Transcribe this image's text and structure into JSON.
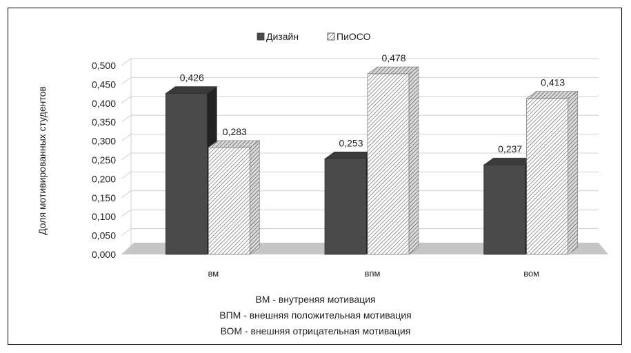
{
  "chart_data": {
    "type": "bar",
    "style": "3d-clustered-column",
    "categories": [
      "ВМ",
      "ВПМ",
      "ВОМ"
    ],
    "series": [
      {
        "name": "Дизайн",
        "values": [
          0.426,
          0.253,
          0.237
        ],
        "color": "#4a4a4a",
        "fill": "solid"
      },
      {
        "name": "ПиОСО",
        "values": [
          0.283,
          0.478,
          0.413
        ],
        "color": "#ffffff",
        "fill": "hatched"
      }
    ],
    "value_labels": [
      [
        "0,426",
        "0,253",
        "0,237"
      ],
      [
        "0,283",
        "0,478",
        "0,413"
      ]
    ],
    "ylabel": "Доля мотивированных студентов",
    "xlabel": "",
    "ylim": [
      0,
      0.5
    ],
    "yticks": [
      "0,000",
      "0,050",
      "0,100",
      "0,150",
      "0,200",
      "0,250",
      "0,300",
      "0,350",
      "0,400",
      "0,450",
      "0,500"
    ],
    "grid": true,
    "legend_position": "top"
  },
  "notes": [
    "ВМ - внутреняя мотивация",
    "ВПМ - внешняя положительная мотивация",
    "ВОМ - внешняя отрицательная мотивация"
  ]
}
